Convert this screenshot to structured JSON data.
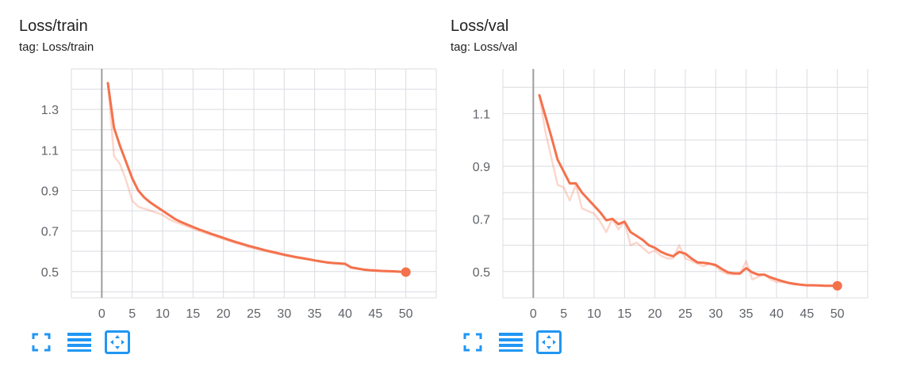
{
  "accent_color": "#f4714c",
  "cards": [
    {
      "title": "Loss/train",
      "tag": "tag: Loss/train",
      "toolbar": {
        "icons": [
          "fullscreen-icon",
          "data-table-icon",
          "fit-domain-icon"
        ]
      }
    },
    {
      "title": "Loss/val",
      "tag": "tag: Loss/val",
      "toolbar": {
        "icons": [
          "fullscreen-icon",
          "data-table-icon",
          "fit-domain-icon"
        ]
      }
    }
  ],
  "chart_data": [
    {
      "type": "line",
      "title": "Loss/train",
      "xlabel": "",
      "ylabel": "",
      "xlim": [
        -5,
        55
      ],
      "ylim": [
        0.37,
        1.5
      ],
      "xticks": [
        0,
        5,
        10,
        15,
        20,
        25,
        30,
        35,
        40,
        45,
        50
      ],
      "yticks": [
        0.5,
        0.7,
        0.9,
        1.1,
        1.3
      ],
      "grid": true,
      "series": [
        {
          "smoothed": true,
          "x": [
            1,
            2,
            3,
            4,
            5,
            6,
            7,
            8,
            9,
            10,
            11,
            12,
            13,
            14,
            15,
            16,
            17,
            18,
            19,
            20,
            21,
            22,
            23,
            24,
            25,
            26,
            27,
            28,
            29,
            30,
            31,
            32,
            33,
            34,
            35,
            36,
            37,
            38,
            39,
            40,
            41,
            42,
            43,
            44,
            45,
            46,
            47,
            48,
            49,
            50
          ],
          "y": [
            1.43,
            1.21,
            1.12,
            1.04,
            0.96,
            0.9,
            0.865,
            0.84,
            0.82,
            0.8,
            0.78,
            0.76,
            0.745,
            0.732,
            0.72,
            0.708,
            0.697,
            0.686,
            0.676,
            0.666,
            0.656,
            0.646,
            0.637,
            0.628,
            0.62,
            0.612,
            0.604,
            0.597,
            0.59,
            0.583,
            0.577,
            0.571,
            0.566,
            0.561,
            0.555,
            0.55,
            0.545,
            0.542,
            0.54,
            0.538,
            0.52,
            0.515,
            0.51,
            0.507,
            0.505,
            0.503,
            0.502,
            0.501,
            0.499,
            0.497
          ]
        },
        {
          "smoothed": false,
          "x": [
            1,
            2,
            3,
            4,
            5,
            6,
            7,
            8,
            9,
            10,
            11,
            12,
            13,
            14,
            15,
            16,
            17,
            18,
            19,
            20,
            21,
            22,
            23,
            24,
            25,
            26,
            27,
            28,
            29,
            30,
            31,
            32,
            33,
            34,
            35,
            36,
            37,
            38,
            39,
            40,
            41,
            42,
            43,
            44,
            45,
            46,
            47,
            48,
            49,
            50
          ],
          "y": [
            1.43,
            1.07,
            1.03,
            0.95,
            0.85,
            0.82,
            0.81,
            0.8,
            0.79,
            0.78,
            0.76,
            0.745,
            0.735,
            0.722,
            0.712,
            0.7,
            0.69,
            0.68,
            0.67,
            0.66,
            0.65,
            0.64,
            0.632,
            0.622,
            0.614,
            0.607,
            0.6,
            0.593,
            0.586,
            0.58,
            0.574,
            0.568,
            0.563,
            0.558,
            0.553,
            0.548,
            0.543,
            0.54,
            0.538,
            0.536,
            0.518,
            0.513,
            0.508,
            0.505,
            0.503,
            0.501,
            0.5,
            0.499,
            0.498,
            0.497
          ]
        }
      ]
    },
    {
      "type": "line",
      "title": "Loss/val",
      "xlabel": "",
      "ylabel": "",
      "xlim": [
        -5,
        55
      ],
      "ylim": [
        0.4,
        1.27
      ],
      "xticks": [
        0,
        5,
        10,
        15,
        20,
        25,
        30,
        35,
        40,
        45,
        50
      ],
      "yticks": [
        0.5,
        0.7,
        0.9,
        1.1
      ],
      "grid": true,
      "series": [
        {
          "smoothed": true,
          "x": [
            1,
            2,
            3,
            4,
            5,
            6,
            7,
            8,
            9,
            10,
            11,
            12,
            13,
            14,
            15,
            16,
            17,
            18,
            19,
            20,
            21,
            22,
            23,
            24,
            25,
            26,
            27,
            28,
            29,
            30,
            31,
            32,
            33,
            34,
            35,
            36,
            37,
            38,
            39,
            40,
            41,
            42,
            43,
            44,
            45,
            46,
            47,
            48,
            49,
            50
          ],
          "y": [
            1.17,
            1.09,
            1.01,
            0.925,
            0.88,
            0.835,
            0.835,
            0.8,
            0.775,
            0.75,
            0.725,
            0.695,
            0.7,
            0.68,
            0.69,
            0.65,
            0.635,
            0.62,
            0.6,
            0.59,
            0.575,
            0.565,
            0.558,
            0.575,
            0.568,
            0.55,
            0.535,
            0.533,
            0.53,
            0.525,
            0.51,
            0.497,
            0.493,
            0.493,
            0.513,
            0.497,
            0.488,
            0.488,
            0.478,
            0.47,
            0.463,
            0.457,
            0.453,
            0.45,
            0.448,
            0.448,
            0.447,
            0.446,
            0.446,
            0.446
          ]
        },
        {
          "smoothed": false,
          "x": [
            1,
            2,
            3,
            4,
            5,
            6,
            7,
            8,
            9,
            10,
            11,
            12,
            13,
            14,
            15,
            16,
            17,
            18,
            19,
            20,
            21,
            22,
            23,
            24,
            25,
            26,
            27,
            28,
            29,
            30,
            31,
            32,
            33,
            34,
            35,
            36,
            37,
            38,
            39,
            40,
            41,
            42,
            43,
            44,
            45,
            46,
            47,
            48,
            49,
            50
          ],
          "y": [
            1.17,
            1.03,
            0.93,
            0.83,
            0.82,
            0.77,
            0.83,
            0.74,
            0.73,
            0.72,
            0.69,
            0.65,
            0.7,
            0.66,
            0.69,
            0.6,
            0.61,
            0.59,
            0.57,
            0.58,
            0.56,
            0.55,
            0.55,
            0.6,
            0.55,
            0.54,
            0.53,
            0.52,
            0.53,
            0.52,
            0.5,
            0.49,
            0.49,
            0.49,
            0.54,
            0.47,
            0.48,
            0.49,
            0.47,
            0.46,
            0.46,
            0.455,
            0.45,
            0.45,
            0.448,
            0.448,
            0.447,
            0.446,
            0.446,
            0.446
          ]
        }
      ]
    }
  ]
}
